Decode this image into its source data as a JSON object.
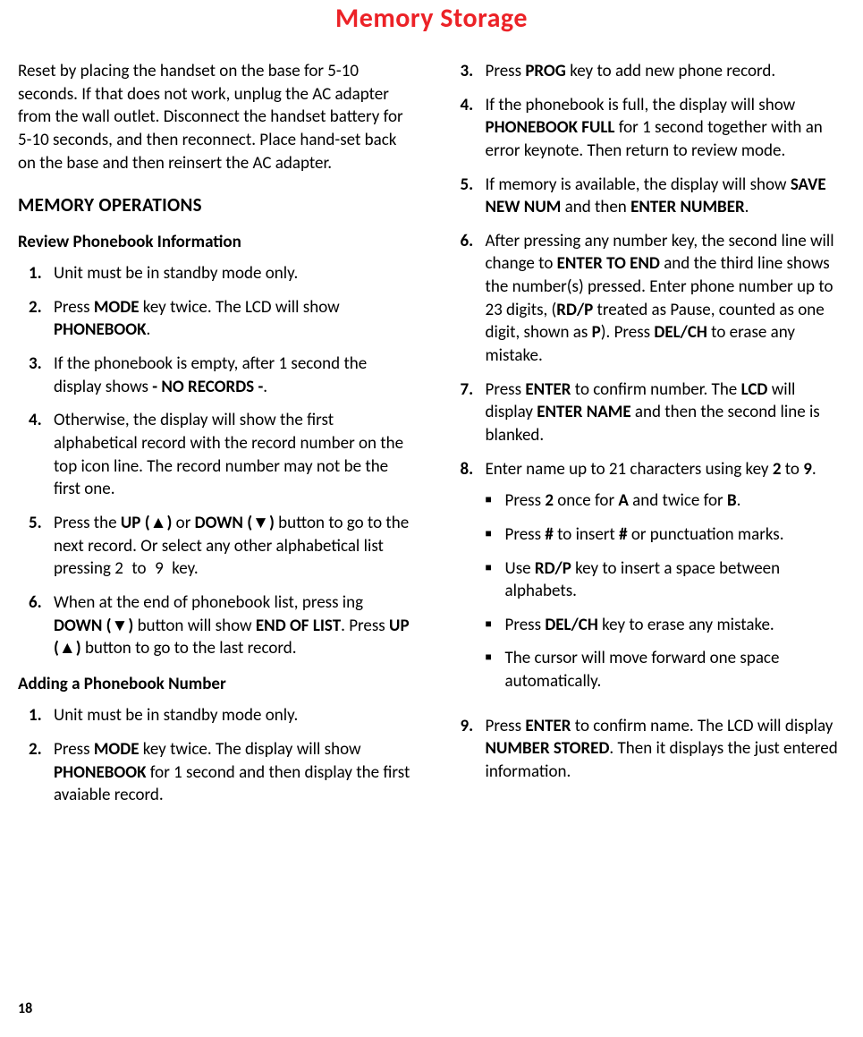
{
  "title": "Memory Storage",
  "page_number": "18",
  "colors": {
    "title": "#ec2227",
    "text": "#000000",
    "background": "#ffffff"
  },
  "left": {
    "intro": "Reset by placing the handset on the base for 5-10 seconds. If that does not work, unplug the AC adapter from the wall outlet. Disconnect the handset battery for\n5-10 seconds, and then reconnect. Place hand-set back on the base and then reinsert the AC adapter.",
    "heading_memops": "MEMORY OPERATIONS",
    "heading_review": "Review Phonebook Information",
    "review": {
      "n1": "1.",
      "t1": "Unit must be in standby mode only.",
      "n2": "2.",
      "t2a": "Press ",
      "t2b": "MODE",
      "t2c": " key twice. The LCD will show ",
      "t2d": "PHONEBOOK",
      "t2e": ".",
      "n3": "3.",
      "t3a": "If the phonebook is empty, after 1 second the display shows ",
      "t3b": "- NO RECORDS -",
      "t3c": ".",
      "n4": "4.",
      "t4": "Otherwise, the display will show the first alphabetical record with the record number on the top icon line. The record number may not be the first one.",
      "n5": "5.",
      "t5a": "Press the ",
      "t5b": "UP (▲)",
      "t5c": " or ",
      "t5d": "DOWN (▼)",
      "t5e": " button to go to the next record. Or select any other alphabetical list pressing  2 to 9 key.",
      "n6": "6.",
      "t6a": "When at the end of phonebook list, press ing ",
      "t6b": "DOWN (▼)",
      "t6c": " button will show ",
      "t6d": "END OF LIST",
      "t6e": ". Press ",
      "t6f": "UP (▲)",
      "t6g": " button to go to the last record."
    },
    "heading_add": "Adding a Phonebook Number",
    "add": {
      "n1": "1.",
      "t1": "Unit must be in standby mode only.",
      "n2": "2.",
      "t2a": "Press ",
      "t2b": "MODE",
      "t2c": " key twice. The display will show ",
      "t2d": "PHONEBOOK",
      "t2e": " for 1 second and then display the first avaiable record."
    }
  },
  "right": {
    "items": {
      "n3": "3.",
      "t3a": "Press ",
      "t3b": "PROG",
      "t3c": " key to add new phone record.",
      "n4": "4.",
      "t4a": "If the phonebook is full, the display will show ",
      "t4b": "PHONEBOOK FULL",
      "t4c": " for 1 second together with an error keynote. Then return to review mode.",
      "n5": "5.",
      "t5a": "If memory is available, the display will show ",
      "t5b": "SAVE NEW NUM",
      "t5c": " and then ",
      "t5d": "ENTER NUMBER",
      "t5e": ".",
      "n6": "6.",
      "t6a": "After pressing any number key, the second line will change to ",
      "t6b": "ENTER TO END",
      "t6c": " and the third line shows the number(s) pressed. Enter phone number up to 23 digits, (",
      "t6d": "RD/P",
      "t6e": " treated as Pause, counted as one digit, shown as ",
      "t6f": "P",
      "t6g": "). Press ",
      "t6h": "DEL/CH",
      "t6i": " to erase any mistake.",
      "n7": "7.",
      "t7a": "Press ",
      "t7b": "ENTER",
      "t7c": " to confirm number. The ",
      "t7d": "LCD",
      "t7e": " will display ",
      "t7f": "ENTER NAME",
      "t7g": " and then the second line is blanked.",
      "n8": "8.",
      "t8a": "Enter name up to 21 characters using key ",
      "t8b": "2",
      "t8c": " to ",
      "t8d": "9",
      "t8e": ".",
      "b1a": "Press ",
      "b1b": "2",
      "b1c": " once for ",
      "b1d": "A",
      "b1e": " and twice for ",
      "b1f": "B",
      "b1g": ".",
      "b2a": "Press ",
      "b2b": "#",
      "b2c": " to insert ",
      "b2d": "#",
      "b2e": " or punctuation marks.",
      "b3a": "Use ",
      "b3b": "RD/P",
      "b3c": " key to insert a space between alphabets.",
      "b4a": "Press ",
      "b4b": "DEL/CH",
      "b4c": " key to erase any mistake.",
      "b5": "The cursor will move forward one space automatically.",
      "n9": "9.",
      "t9a": "Press ",
      "t9b": "ENTER",
      "t9c": " to confirm name. The LCD will display ",
      "t9d": "NUMBER STORED",
      "t9e": ". Then it displays the just entered information."
    }
  }
}
